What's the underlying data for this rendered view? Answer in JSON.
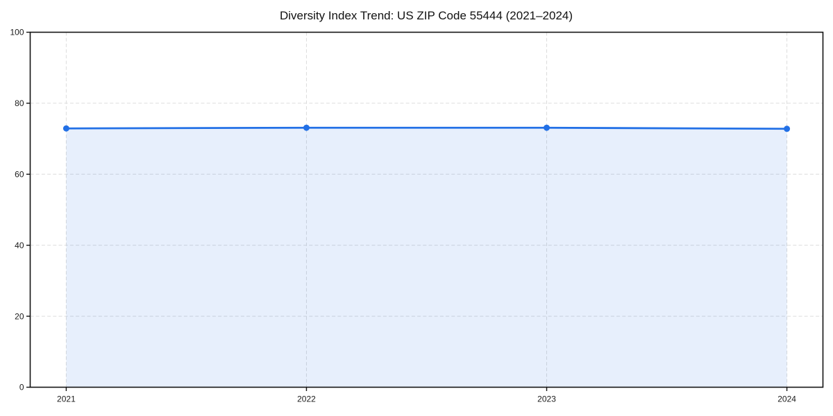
{
  "page": {
    "background": "#ffffff"
  },
  "chart_data": {
    "type": "area",
    "title": "Diversity Index Trend: US ZIP Code 55444 (2021–2024)",
    "x": [
      2021,
      2022,
      2023,
      2024
    ],
    "xtick_labels": [
      "2021",
      "2022",
      "2023",
      "2024"
    ],
    "values": [
      72.9,
      73.1,
      73.1,
      72.8
    ],
    "series_name": "Diversity Index",
    "xlabel": "",
    "ylabel": "",
    "ylim": [
      0,
      100
    ],
    "yticks": [
      0,
      20,
      40,
      60,
      80,
      100
    ],
    "ytick_labels": [
      "0",
      "20",
      "40",
      "60",
      "80",
      "100"
    ],
    "x_margin_fraction": 0.05,
    "grid": true,
    "grid_style": "dashed",
    "legend": "none",
    "colors": {
      "line": "#2270e6",
      "marker": "#2270e6",
      "fill": "rgba(34, 112, 230, 0.11)",
      "grid": "#dcdcdc",
      "spine": "#111111",
      "text": "#1a1a1a"
    }
  }
}
